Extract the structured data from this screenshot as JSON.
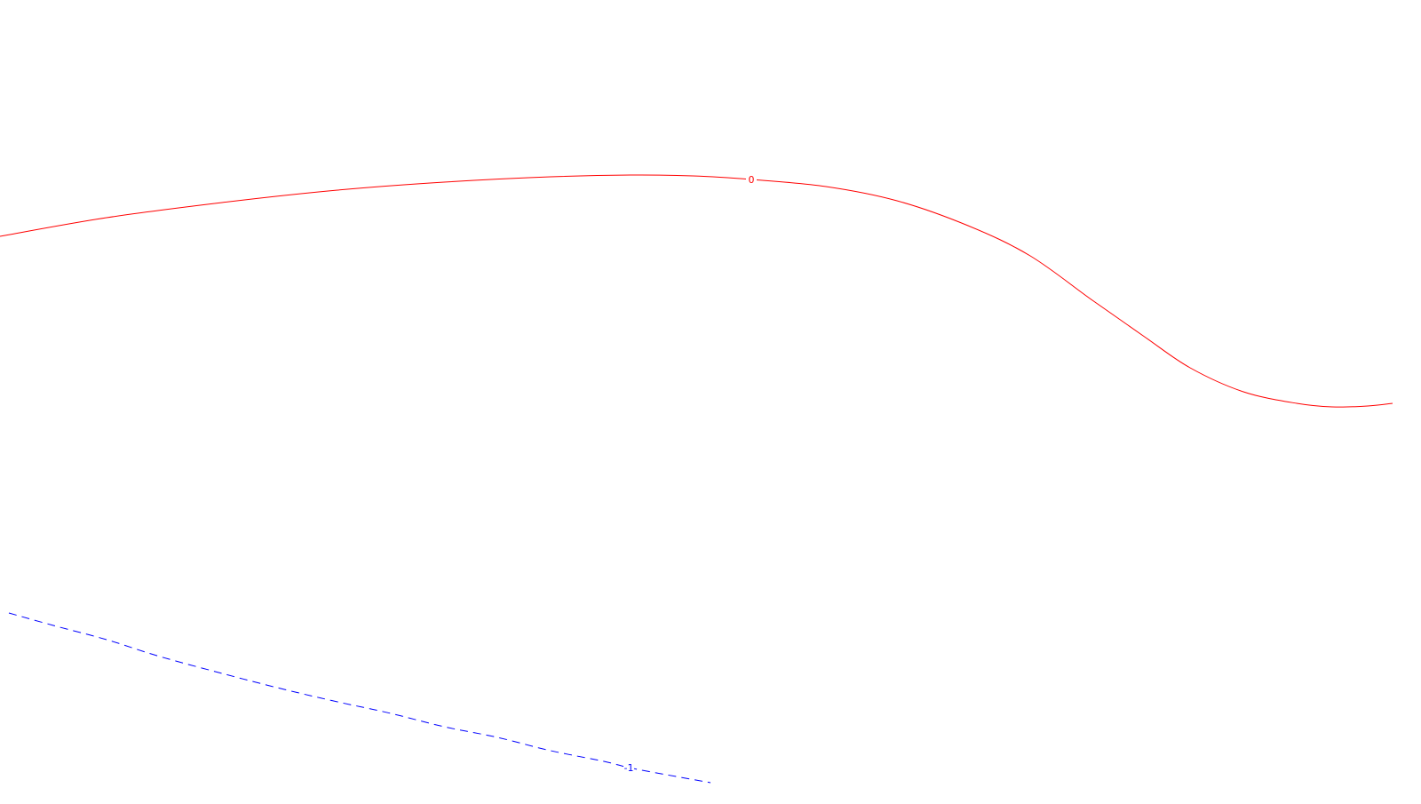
{
  "chart_data": {
    "type": "line",
    "title": "",
    "xlabel": "",
    "ylabel": "",
    "grid": false,
    "legend": "none",
    "series": [
      {
        "label": "0",
        "color": "#ff0000",
        "style": "solid",
        "points": [
          [
            0,
            266
          ],
          [
            120,
            245
          ],
          [
            250,
            228
          ],
          [
            380,
            214
          ],
          [
            500,
            205
          ],
          [
            620,
            199
          ],
          [
            710,
            197
          ],
          [
            780,
            198
          ],
          [
            846,
            202
          ],
          [
            930,
            210
          ],
          [
            1010,
            226
          ],
          [
            1090,
            254
          ],
          [
            1160,
            288
          ],
          [
            1230,
            338
          ],
          [
            1290,
            380
          ],
          [
            1340,
            414
          ],
          [
            1400,
            441
          ],
          [
            1460,
            454
          ],
          [
            1500,
            458
          ],
          [
            1540,
            457
          ],
          [
            1568,
            454
          ]
        ],
        "label_at": [
          846,
          202
        ]
      },
      {
        "label": "-1",
        "color": "#0000ff",
        "style": "dashed",
        "points": [
          [
            10,
            690
          ],
          [
            60,
            704
          ],
          [
            120,
            720
          ],
          [
            180,
            739
          ],
          [
            250,
            758
          ],
          [
            320,
            776
          ],
          [
            380,
            790
          ],
          [
            440,
            803
          ],
          [
            500,
            818
          ],
          [
            560,
            830
          ],
          [
            620,
            845
          ],
          [
            680,
            857
          ],
          [
            708,
            864
          ],
          [
            750,
            872
          ],
          [
            800,
            881
          ]
        ],
        "label_at": [
          708,
          864
        ]
      }
    ]
  }
}
